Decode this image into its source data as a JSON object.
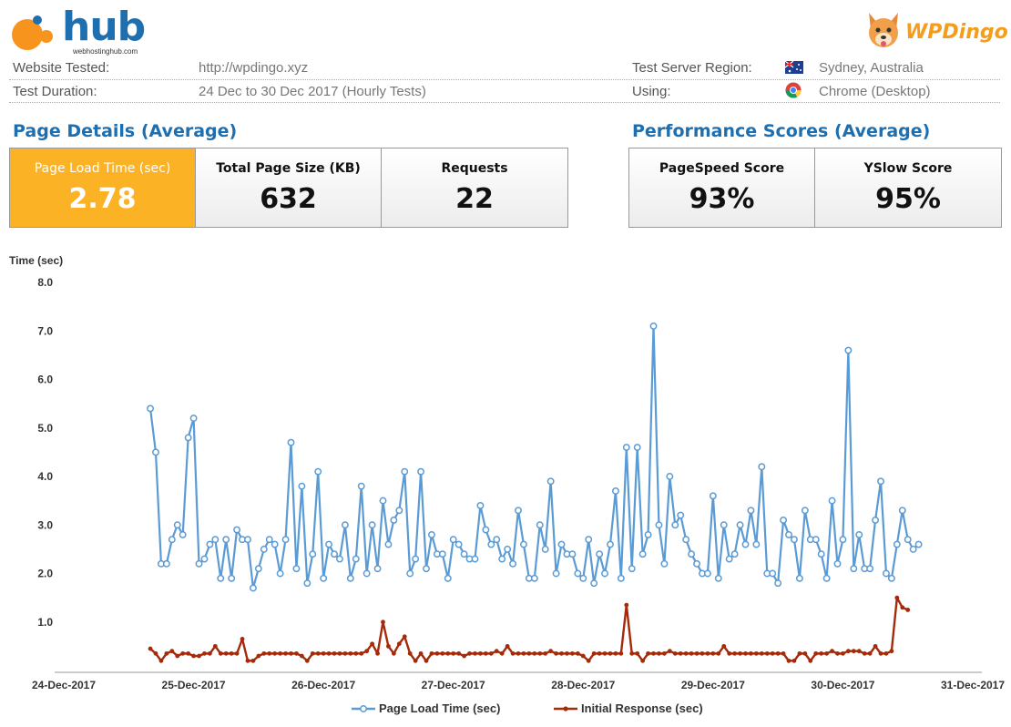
{
  "header": {
    "hub_logo_text": "hub",
    "hub_logo_sub": "webhostinghub.com",
    "dingo_logo_text": "WPDingo"
  },
  "info": {
    "website_label": "Website Tested:",
    "website_value": "http://wpdingo.xyz",
    "duration_label": "Test Duration:",
    "duration_value": "24 Dec to 30 Dec 2017 (Hourly Tests)",
    "region_label": "Test Server Region:",
    "region_value": "Sydney, Australia",
    "using_label": "Using:",
    "using_value": "Chrome (Desktop)"
  },
  "page_details": {
    "title": "Page Details (Average)",
    "load_time_label": "Page Load Time (sec)",
    "load_time_value": "2.78",
    "size_label": "Total Page Size (KB)",
    "size_value": "632",
    "requests_label": "Requests",
    "requests_value": "22"
  },
  "performance": {
    "title": "Performance Scores (Average)",
    "pagespeed_label": "PageSpeed Score",
    "pagespeed_value": "93%",
    "yslow_label": "YSlow Score",
    "yslow_value": "95%"
  },
  "colors": {
    "highlight": "#fbb225",
    "title_blue": "#1d6fb0",
    "series_load": "#5b9bd5",
    "series_initial": "#a52a0a"
  },
  "chart_data": {
    "type": "line",
    "ylabel": "Time (sec)",
    "ylim": [
      0,
      8
    ],
    "yticks": [
      "8.0",
      "7.0",
      "6.0",
      "5.0",
      "4.0",
      "3.0",
      "2.0",
      "1.0"
    ],
    "xlim": [
      "24-Dec-2017 00:00",
      "31-Dec-2017 00:00"
    ],
    "xtick_labels": [
      "24-Dec-2017",
      "25-Dec-2017",
      "26-Dec-2017",
      "27-Dec-2017",
      "28-Dec-2017",
      "29-Dec-2017",
      "30-Dec-2017",
      "31-Dec-2017"
    ],
    "grid": false,
    "legend": "bottom",
    "series": [
      {
        "name": "Page Load Time (sec)",
        "x_start": "24-Dec-2017 16:00",
        "x_step_hours": 1,
        "values": [
          5.4,
          4.5,
          2.2,
          2.2,
          2.7,
          3.0,
          2.8,
          4.8,
          5.2,
          2.2,
          2.3,
          2.6,
          2.7,
          1.9,
          2.7,
          1.9,
          2.9,
          2.7,
          2.7,
          1.7,
          2.1,
          2.5,
          2.7,
          2.6,
          2.0,
          2.7,
          4.7,
          2.1,
          3.8,
          1.8,
          2.4,
          4.1,
          1.9,
          2.6,
          2.4,
          2.3,
          3.0,
          1.9,
          2.3,
          3.8,
          2.0,
          3.0,
          2.1,
          3.5,
          2.6,
          3.1,
          3.3,
          4.1,
          2.0,
          2.3,
          4.1,
          2.1,
          2.8,
          2.4,
          2.4,
          1.9,
          2.7,
          2.6,
          2.4,
          2.3,
          2.3,
          3.4,
          2.9,
          2.6,
          2.7,
          2.3,
          2.5,
          2.2,
          3.3,
          2.6,
          1.9,
          1.9,
          3.0,
          2.5,
          3.9,
          2.0,
          2.6,
          2.4,
          2.4,
          2.0,
          1.9,
          2.7,
          1.8,
          2.4,
          2.0,
          2.6,
          3.7,
          1.9,
          4.6,
          2.1,
          4.6,
          2.4,
          2.8,
          7.1,
          3.0,
          2.2,
          4.0,
          3.0,
          3.2,
          2.7,
          2.4,
          2.2,
          2.0,
          2.0,
          3.6,
          1.9,
          3.0,
          2.3,
          2.4,
          3.0,
          2.6,
          3.3,
          2.6,
          4.2,
          2.0,
          2.0,
          1.8,
          3.1,
          2.8,
          2.7,
          1.9,
          3.3,
          2.7,
          2.7,
          2.4,
          1.9,
          3.5,
          2.2,
          2.7,
          6.6,
          2.1,
          2.8,
          2.1,
          2.1,
          3.1,
          3.9,
          2.0,
          1.9,
          2.6,
          3.3,
          2.7,
          2.5,
          2.6
        ]
      },
      {
        "name": "Initial Response (sec)",
        "x_start": "24-Dec-2017 16:00",
        "x_step_hours": 1,
        "values": [
          0.45,
          0.35,
          0.2,
          0.35,
          0.4,
          0.3,
          0.35,
          0.35,
          0.3,
          0.3,
          0.35,
          0.35,
          0.5,
          0.35,
          0.35,
          0.35,
          0.35,
          0.65,
          0.2,
          0.2,
          0.3,
          0.35,
          0.35,
          0.35,
          0.35,
          0.35,
          0.35,
          0.35,
          0.3,
          0.2,
          0.35,
          0.35,
          0.35,
          0.35,
          0.35,
          0.35,
          0.35,
          0.35,
          0.35,
          0.35,
          0.4,
          0.55,
          0.35,
          1.0,
          0.5,
          0.35,
          0.55,
          0.7,
          0.35,
          0.2,
          0.35,
          0.2,
          0.35,
          0.35,
          0.35,
          0.35,
          0.35,
          0.35,
          0.3,
          0.35,
          0.35,
          0.35,
          0.35,
          0.35,
          0.4,
          0.35,
          0.5,
          0.35,
          0.35,
          0.35,
          0.35,
          0.35,
          0.35,
          0.35,
          0.4,
          0.35,
          0.35,
          0.35,
          0.35,
          0.35,
          0.3,
          0.2,
          0.35,
          0.35,
          0.35,
          0.35,
          0.35,
          0.35,
          1.35,
          0.35,
          0.35,
          0.2,
          0.35,
          0.35,
          0.35,
          0.35,
          0.4,
          0.35,
          0.35,
          0.35,
          0.35,
          0.35,
          0.35,
          0.35,
          0.35,
          0.35,
          0.5,
          0.35,
          0.35,
          0.35,
          0.35,
          0.35,
          0.35,
          0.35,
          0.35,
          0.35,
          0.35,
          0.35,
          0.2,
          0.2,
          0.35,
          0.35,
          0.2,
          0.35,
          0.35,
          0.35,
          0.4,
          0.35,
          0.35,
          0.4,
          0.4,
          0.4,
          0.35,
          0.35,
          0.5,
          0.35,
          0.35,
          0.4,
          1.5,
          1.3,
          1.25
        ]
      }
    ]
  }
}
